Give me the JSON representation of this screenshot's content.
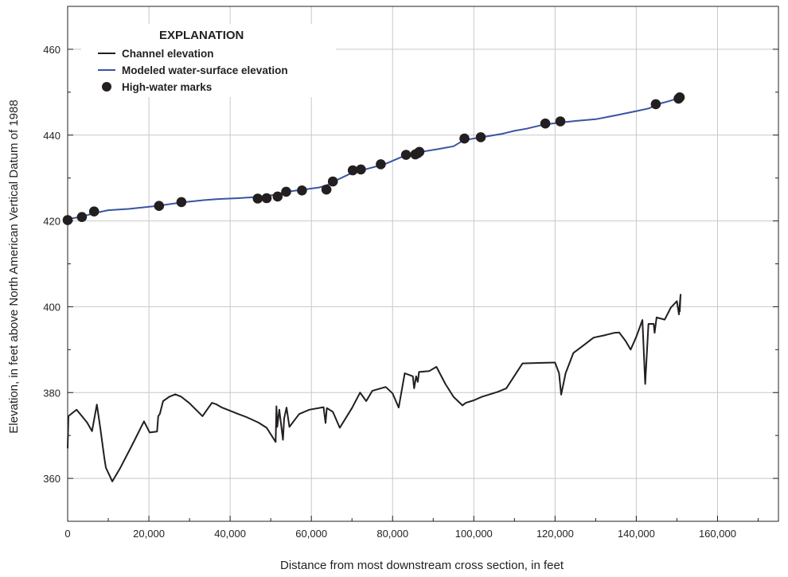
{
  "chart_data": {
    "type": "line",
    "xlabel": "Distance from most downstream cross section, in feet",
    "ylabel": "Elevation, in feet above North American Vertical Datum of 1988",
    "xlim": [
      0,
      175000
    ],
    "ylim": [
      350,
      470
    ],
    "x_ticks": [
      0,
      20000,
      40000,
      60000,
      80000,
      100000,
      120000,
      140000,
      160000
    ],
    "x_tick_labels": [
      "0",
      "20,000",
      "40,000",
      "60,000",
      "80,000",
      "100,000",
      "120,000",
      "140,000",
      "160,000"
    ],
    "y_ticks": [
      360,
      380,
      400,
      420,
      440,
      460
    ],
    "y_tick_labels": [
      "360",
      "380",
      "400",
      "420",
      "440",
      "460"
    ],
    "grid": true,
    "legend": {
      "title": "EXPLANATION",
      "placement": "top-left",
      "entries": [
        "Channel elevation",
        "Modeled water-surface elevation",
        "High-water marks"
      ]
    },
    "series": [
      {
        "name": "Channel elevation",
        "kind": "line",
        "color": "#231f20",
        "points": [
          [
            0,
            367
          ],
          [
            200,
            374.5
          ],
          [
            1500,
            375.5
          ],
          [
            2200,
            376
          ],
          [
            3500,
            374.5
          ],
          [
            4800,
            373
          ],
          [
            6000,
            371
          ],
          [
            7200,
            377.2
          ],
          [
            8000,
            372
          ],
          [
            9000,
            365
          ],
          [
            9400,
            362.5
          ],
          [
            11000,
            359.3
          ],
          [
            13000,
            362.5
          ],
          [
            16000,
            368
          ],
          [
            18800,
            373.3
          ],
          [
            20200,
            370.7
          ],
          [
            22000,
            370.9
          ],
          [
            22300,
            374.5
          ],
          [
            22700,
            375
          ],
          [
            23500,
            378
          ],
          [
            25000,
            379
          ],
          [
            26500,
            379.6
          ],
          [
            28000,
            379
          ],
          [
            30000,
            377.5
          ],
          [
            33200,
            374.5
          ],
          [
            35500,
            377.6
          ],
          [
            36500,
            377.3
          ],
          [
            38000,
            376.5
          ],
          [
            42000,
            375
          ],
          [
            44000,
            374.3
          ],
          [
            47000,
            373
          ],
          [
            49000,
            371.8
          ],
          [
            51200,
            368.5
          ],
          [
            51400,
            376.8
          ],
          [
            51600,
            372
          ],
          [
            52100,
            376
          ],
          [
            53000,
            369
          ],
          [
            53300,
            374
          ],
          [
            53900,
            376.5
          ],
          [
            54600,
            372
          ],
          [
            57000,
            375
          ],
          [
            59500,
            376
          ],
          [
            63000,
            376.6
          ],
          [
            63500,
            372.9
          ],
          [
            63800,
            376.4
          ],
          [
            65300,
            375.5
          ],
          [
            67000,
            371.8
          ],
          [
            70000,
            376.4
          ],
          [
            72000,
            380
          ],
          [
            73500,
            378
          ],
          [
            75000,
            380.4
          ],
          [
            78300,
            381.3
          ],
          [
            80000,
            379.8
          ],
          [
            81500,
            376.5
          ],
          [
            83000,
            384.5
          ],
          [
            85000,
            383.8
          ],
          [
            85300,
            381
          ],
          [
            85800,
            383.8
          ],
          [
            86200,
            382.5
          ],
          [
            86500,
            384.8
          ],
          [
            89000,
            385
          ],
          [
            90800,
            386
          ],
          [
            93000,
            382
          ],
          [
            95000,
            379
          ],
          [
            97200,
            377
          ],
          [
            98000,
            377.6
          ],
          [
            100000,
            378.2
          ],
          [
            102000,
            379
          ],
          [
            106000,
            380.2
          ],
          [
            108000,
            381
          ],
          [
            112000,
            386.8
          ],
          [
            116000,
            386.9
          ],
          [
            120000,
            387
          ],
          [
            121000,
            384.5
          ],
          [
            121500,
            379.5
          ],
          [
            122600,
            384.5
          ],
          [
            124500,
            389.2
          ],
          [
            127000,
            391
          ],
          [
            129500,
            392.8
          ],
          [
            132000,
            393.3
          ],
          [
            134500,
            393.9
          ],
          [
            135800,
            394
          ],
          [
            137400,
            392
          ],
          [
            138600,
            390
          ],
          [
            140000,
            393
          ],
          [
            141500,
            396.9
          ],
          [
            142200,
            382
          ],
          [
            143000,
            396
          ],
          [
            144300,
            396
          ],
          [
            144500,
            393.9
          ],
          [
            145000,
            397.5
          ],
          [
            147000,
            397
          ],
          [
            148500,
            399.8
          ],
          [
            150000,
            401.3
          ],
          [
            150500,
            398.2
          ],
          [
            150900,
            402.8
          ],
          [
            150700,
            398.8
          ]
        ]
      },
      {
        "name": "Modeled water-surface elevation",
        "kind": "line",
        "color": "#3a54a2",
        "points": [
          [
            0,
            420.4
          ],
          [
            3500,
            421
          ],
          [
            6500,
            421.8
          ],
          [
            10000,
            422.5
          ],
          [
            15000,
            422.8
          ],
          [
            22000,
            423.5
          ],
          [
            28000,
            424.3
          ],
          [
            33000,
            424.8
          ],
          [
            37000,
            425.1
          ],
          [
            42000,
            425.3
          ],
          [
            47000,
            425.6
          ],
          [
            51000,
            426.1
          ],
          [
            54000,
            426.8
          ],
          [
            58000,
            427.3
          ],
          [
            62000,
            427.8
          ],
          [
            64000,
            428.4
          ],
          [
            66000,
            429.4
          ],
          [
            70000,
            431.2
          ],
          [
            74000,
            432.2
          ],
          [
            78000,
            433.2
          ],
          [
            80000,
            434
          ],
          [
            83000,
            435.2
          ],
          [
            87000,
            436.1
          ],
          [
            91000,
            436.7
          ],
          [
            95000,
            437.4
          ],
          [
            97500,
            438.8
          ],
          [
            102000,
            439.5
          ],
          [
            107000,
            440.3
          ],
          [
            110000,
            441
          ],
          [
            113000,
            441.5
          ],
          [
            117000,
            442.4
          ],
          [
            121000,
            442.9
          ],
          [
            125000,
            443.3
          ],
          [
            130000,
            443.7
          ],
          [
            135000,
            444.6
          ],
          [
            140000,
            445.6
          ],
          [
            143000,
            446.2
          ],
          [
            146000,
            447.4
          ],
          [
            148000,
            447.9
          ],
          [
            151000,
            448.8
          ]
        ]
      },
      {
        "name": "High-water marks",
        "kind": "scatter",
        "color": "#231f20",
        "points": [
          [
            0,
            420.2
          ],
          [
            3500,
            420.9
          ],
          [
            6500,
            422.2
          ],
          [
            22500,
            423.5
          ],
          [
            28000,
            424.4
          ],
          [
            46800,
            425.2
          ],
          [
            49000,
            425.3
          ],
          [
            51700,
            425.7
          ],
          [
            53800,
            426.8
          ],
          [
            57700,
            427.1
          ],
          [
            63700,
            427.3
          ],
          [
            65300,
            429.2
          ],
          [
            70200,
            431.8
          ],
          [
            72200,
            432
          ],
          [
            77100,
            433.2
          ],
          [
            83300,
            435.4
          ],
          [
            85600,
            435.5
          ],
          [
            86200,
            435.8
          ],
          [
            86600,
            436.1
          ],
          [
            97700,
            439.2
          ],
          [
            101700,
            439.5
          ],
          [
            117600,
            442.7
          ],
          [
            121300,
            443.2
          ],
          [
            144800,
            447.2
          ],
          [
            150400,
            448.5
          ],
          [
            150700,
            448.8
          ]
        ]
      }
    ]
  }
}
